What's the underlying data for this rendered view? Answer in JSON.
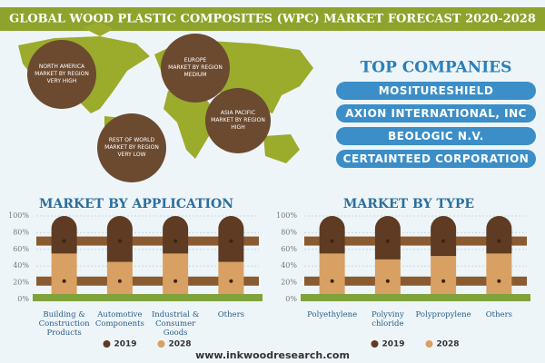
{
  "header": {
    "title": "GLOBAL WOOD PLASTIC COMPOSITES (WPC) MARKET FORECAST 2020-2028"
  },
  "regions": [
    {
      "lines": [
        "NORTH AMERICA",
        "MARKET BY REGION",
        "VERY HIGH"
      ]
    },
    {
      "lines": [
        "EUROPE",
        "MARKET BY REGION",
        "MEDIUM"
      ]
    },
    {
      "lines": [
        "REST OF WORLD",
        "MARKET BY REGION",
        "VERY LOW"
      ]
    },
    {
      "lines": [
        "ASIA PACIFIC",
        "MARKET BY REGION",
        "HIGH"
      ]
    }
  ],
  "top_companies": {
    "title": "TOP COMPANIES",
    "items": [
      "MOSITURESHIELD",
      "AXION INTERNATIONAL, INC",
      "BEOLOGIC N.V.",
      "CERTAINTEED CORPORATION"
    ]
  },
  "chart_data": [
    {
      "type": "bar",
      "stacked": true,
      "title": "MARKET BY APPLICATION",
      "categories": [
        "Building & Construction Products",
        "Automotive Components",
        "Industrial & Consumer Goods",
        "Others"
      ],
      "series": [
        {
          "name": "2028",
          "color": "#d9a063",
          "values": [
            55,
            45,
            55,
            45
          ]
        },
        {
          "name": "2019",
          "color": "#5e3b22",
          "values": [
            45,
            55,
            45,
            55
          ]
        }
      ],
      "ylim": [
        0,
        100
      ],
      "yticks": [
        {
          "value": 0,
          "label": "0%"
        },
        {
          "value": 20,
          "label": "20%"
        },
        {
          "value": 40,
          "label": "40%"
        },
        {
          "value": 60,
          "label": "60%"
        },
        {
          "value": 80,
          "label": "80%"
        },
        {
          "value": 100,
          "label": "100%"
        }
      ],
      "grid": true
    },
    {
      "type": "bar",
      "stacked": true,
      "title": "MARKET BY TYPE",
      "categories": [
        "Polyethylene",
        "Polyviny chloride",
        "Polypropylene",
        "Others"
      ],
      "series": [
        {
          "name": "2028",
          "color": "#d9a063",
          "values": [
            55,
            48,
            52,
            55
          ]
        },
        {
          "name": "2019",
          "color": "#5e3b22",
          "values": [
            45,
            52,
            48,
            45
          ]
        }
      ],
      "ylim": [
        0,
        100
      ],
      "yticks": [
        {
          "value": 0,
          "label": "0%"
        },
        {
          "value": 20,
          "label": "20%"
        },
        {
          "value": 40,
          "label": "40%"
        },
        {
          "value": 60,
          "label": "60%"
        },
        {
          "value": 80,
          "label": "80%"
        },
        {
          "value": 100,
          "label": "100%"
        }
      ],
      "grid": true
    }
  ],
  "footer": {
    "url": "www.inkwoodresearch.com"
  }
}
